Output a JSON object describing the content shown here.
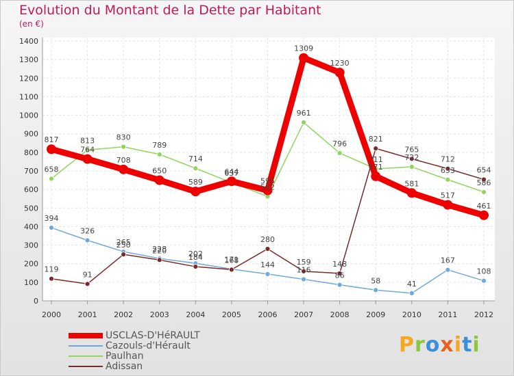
{
  "title": "Evolution du Montant de la Dette par Habitant",
  "subtitle": "(en €)",
  "brand": {
    "text": "Proxiti",
    "colors": [
      "#f5a623",
      "#8dc63f",
      "#3b8ed8",
      "#e8601c",
      "#f5a623",
      "#3b8ed8",
      "#8dc63f"
    ]
  },
  "chart_data": {
    "type": "line",
    "title": "Evolution du Montant de la Dette par Habitant",
    "subtitle": "(en €)",
    "xlabel": "",
    "ylabel": "",
    "categories": [
      "2000",
      "2001",
      "2002",
      "2003",
      "2004",
      "2005",
      "2006",
      "2007",
      "2008",
      "2009",
      "2010",
      "2011",
      "2012"
    ],
    "yticks": [
      0,
      100,
      200,
      300,
      400,
      500,
      600,
      700,
      800,
      900,
      1000,
      1100,
      1200,
      1300,
      1400
    ],
    "ylim": [
      0,
      1400
    ],
    "grid": true,
    "legend_position": "bottom-left",
    "series": [
      {
        "name": "Cazouls-d'Hérault",
        "color": "#6fa8dc",
        "values": [
          394,
          326,
          265,
          228,
          202,
          171,
          144,
          116,
          86,
          58,
          41,
          167,
          108
        ]
      },
      {
        "name": "Paulhan",
        "color": "#8fd45b",
        "values": [
          658,
          813,
          830,
          789,
          714,
          637,
          562,
          961,
          796,
          711,
          722,
          653,
          586
        ]
      },
      {
        "name": "Adissan",
        "color": "#7a2a2a",
        "values": [
          119,
          91,
          250,
          220,
          184,
          168,
          280,
          159,
          148,
          821,
          765,
          712,
          654
        ]
      },
      {
        "name": "USCLAS-D'HéRAULT",
        "color": "#ee0000",
        "values": [
          817,
          764,
          708,
          650,
          589,
          644,
          595,
          1309,
          1230,
          671,
          581,
          517,
          461
        ]
      }
    ]
  }
}
